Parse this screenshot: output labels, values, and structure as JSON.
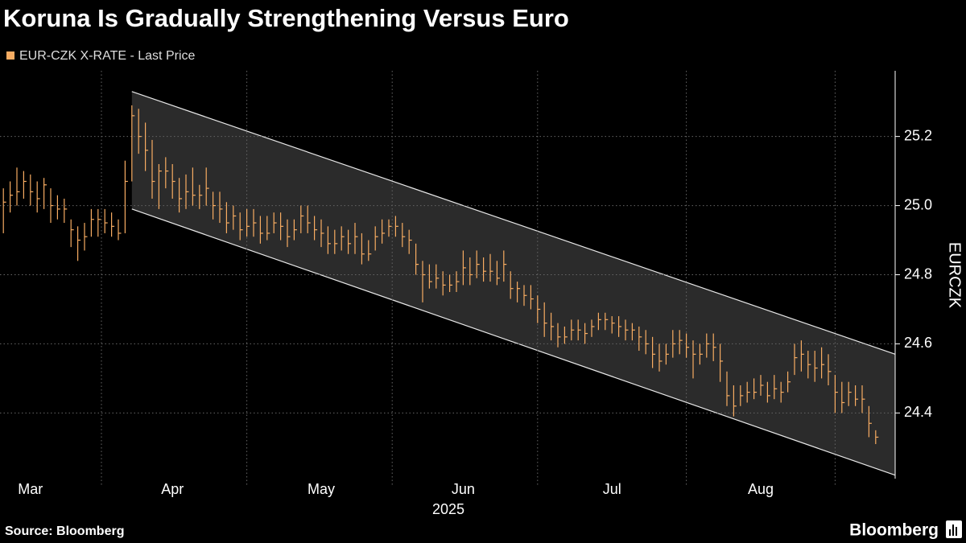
{
  "chart_data": {
    "type": "ohlc",
    "title": "Koruna Is Gradually Strengthening Versus Euro",
    "y_axis_label": "EURCZK",
    "x_axis_label": "2025",
    "source": "Source: Bloomberg",
    "logo": "Bloomberg",
    "categories": [
      null,
      null,
      null,
      null,
      "Mar",
      null,
      null,
      null,
      null,
      null,
      null,
      null,
      null,
      null,
      null,
      null,
      null,
      null,
      null,
      null,
      null,
      null,
      null,
      null,
      null,
      "Apr",
      null,
      null,
      null,
      null,
      null,
      null,
      null,
      null,
      null,
      null,
      null,
      null,
      null,
      null,
      null,
      null,
      null,
      null,
      null,
      null,
      null,
      "May",
      null,
      null,
      null,
      null,
      null,
      null,
      null,
      null,
      null,
      null,
      null,
      null,
      null,
      null,
      null,
      null,
      null,
      null,
      null,
      null,
      "Jun",
      null,
      null,
      null,
      null,
      null,
      null,
      null,
      null,
      null,
      null,
      null,
      null,
      null,
      null,
      null,
      null,
      null,
      null,
      null,
      null,
      null,
      "Jul",
      null,
      null,
      null,
      null,
      null,
      null,
      null,
      null,
      null,
      null,
      null,
      null,
      null,
      null,
      null,
      null,
      null,
      null,
      null,
      null,
      null,
      "Aug",
      null,
      null,
      null,
      null,
      null,
      null,
      null,
      null,
      null,
      null,
      null,
      null,
      null,
      null,
      null,
      null,
      null
    ],
    "series": [
      {
        "name": "EUR-CZK X-RATE - Last Price",
        "color": "#f7ac62",
        "high": [
          25.05,
          25.07,
          25.11,
          25.1,
          25.09,
          25.07,
          25.08,
          25.05,
          25.03,
          25.02,
          24.96,
          24.94,
          24.95,
          24.99,
          24.99,
          24.99,
          24.98,
          24.96,
          25.13,
          25.29,
          25.28,
          25.24,
          25.19,
          25.12,
          25.14,
          25.12,
          25.08,
          25.09,
          25.11,
          25.06,
          25.11,
          25.04,
          25.04,
          25.01,
          25.0,
          24.98,
          24.99,
          24.99,
          24.97,
          24.97,
          24.98,
          24.98,
          24.96,
          24.96,
          25.0,
          25.0,
          24.97,
          24.96,
          24.94,
          24.93,
          24.94,
          24.93,
          24.95,
          24.92,
          24.9,
          24.94,
          24.96,
          24.96,
          24.97,
          24.95,
          24.93,
          24.89,
          24.84,
          24.83,
          24.83,
          24.81,
          24.8,
          24.81,
          24.87,
          24.85,
          24.87,
          24.85,
          24.86,
          24.84,
          24.87,
          24.81,
          24.78,
          24.77,
          24.77,
          24.74,
          24.72,
          24.69,
          24.66,
          24.65,
          24.67,
          24.67,
          24.66,
          24.67,
          24.69,
          24.69,
          24.68,
          24.68,
          24.67,
          24.66,
          24.65,
          24.64,
          24.62,
          24.6,
          24.6,
          24.64,
          24.64,
          24.63,
          24.61,
          24.6,
          24.63,
          24.63,
          24.6,
          24.52,
          24.48,
          24.48,
          24.49,
          24.5,
          24.51,
          24.49,
          24.51,
          24.49,
          24.52,
          24.6,
          24.61,
          24.58,
          24.58,
          24.59,
          24.57,
          24.51,
          24.49,
          24.49,
          24.48,
          24.48,
          24.42,
          24.35
        ],
        "low": [
          24.92,
          24.98,
          25.0,
          25.02,
          25.0,
          24.98,
          24.99,
          24.95,
          24.96,
          24.95,
          24.88,
          24.84,
          24.87,
          24.91,
          24.91,
          24.92,
          24.91,
          24.9,
          24.92,
          25.07,
          25.15,
          25.1,
          25.02,
          24.99,
          25.05,
          25.02,
          24.98,
          24.99,
          25.0,
          24.99,
          25.0,
          24.96,
          24.95,
          24.92,
          24.93,
          24.9,
          24.91,
          24.91,
          24.89,
          24.9,
          24.92,
          24.9,
          24.88,
          24.9,
          24.92,
          24.92,
          24.9,
          24.88,
          24.86,
          24.86,
          24.87,
          24.86,
          24.86,
          24.83,
          24.84,
          24.87,
          24.89,
          24.91,
          24.91,
          24.88,
          24.86,
          24.8,
          24.72,
          24.76,
          24.76,
          24.74,
          24.75,
          24.75,
          24.77,
          24.77,
          24.79,
          24.78,
          24.78,
          24.77,
          24.78,
          24.73,
          24.72,
          24.71,
          24.7,
          24.66,
          24.62,
          24.61,
          24.59,
          24.6,
          24.61,
          24.61,
          24.6,
          24.62,
          24.64,
          24.64,
          24.63,
          24.62,
          24.61,
          24.61,
          24.58,
          24.57,
          24.53,
          24.52,
          24.54,
          24.56,
          24.57,
          24.56,
          24.5,
          24.54,
          24.56,
          24.55,
          24.49,
          24.42,
          24.39,
          24.42,
          24.43,
          24.44,
          24.45,
          24.43,
          24.44,
          24.43,
          24.46,
          24.51,
          24.52,
          24.5,
          24.49,
          24.5,
          24.48,
          24.4,
          24.4,
          24.42,
          24.42,
          24.4,
          24.33,
          24.31
        ],
        "close": [
          25.01,
          25.03,
          25.04,
          25.07,
          25.04,
          25.02,
          25.06,
          25.0,
          24.99,
          24.99,
          24.93,
          24.9,
          24.91,
          24.96,
          24.96,
          24.95,
          24.94,
          24.92,
          25.07,
          25.26,
          25.2,
          25.16,
          25.07,
          25.1,
          25.1,
          25.07,
          25.02,
          25.04,
          25.03,
          25.03,
          25.05,
          25.0,
          24.99,
          24.95,
          24.97,
          24.93,
          24.94,
          24.95,
          24.92,
          24.92,
          24.95,
          24.94,
          24.91,
          24.93,
          24.97,
          24.95,
          24.93,
          24.92,
          24.89,
          24.89,
          24.91,
          24.89,
          24.91,
          24.86,
          24.86,
          24.91,
          24.92,
          24.94,
          24.94,
          24.91,
          24.9,
          24.83,
          24.8,
          24.78,
          24.79,
          24.77,
          24.77,
          24.78,
          24.82,
          24.8,
          24.83,
          24.81,
          24.81,
          24.79,
          24.83,
          24.76,
          24.76,
          24.74,
          24.73,
          24.7,
          24.66,
          24.65,
          24.62,
          24.62,
          24.64,
          24.64,
          24.63,
          24.65,
          24.67,
          24.67,
          24.66,
          24.65,
          24.64,
          24.64,
          24.62,
          24.6,
          24.57,
          24.55,
          24.57,
          24.6,
          24.61,
          24.59,
          24.57,
          24.57,
          24.6,
          24.59,
          24.55,
          24.45,
          24.42,
          24.45,
          24.46,
          24.46,
          24.48,
          24.45,
          24.47,
          24.46,
          24.49,
          24.56,
          24.57,
          24.54,
          24.53,
          24.54,
          24.52,
          24.46,
          24.43,
          24.46,
          24.44,
          24.44,
          24.37,
          24.33
        ]
      }
    ],
    "channel": {
      "upper": [
        25.33,
        24.57
      ],
      "lower": [
        24.99,
        24.22
      ]
    },
    "ylim": [
      24.21,
      25.39
    ],
    "yticks": [
      24.4,
      24.6,
      24.8,
      {
        "value": 25,
        "label": "25.0"
      },
      25.2
    ],
    "grid": true
  }
}
